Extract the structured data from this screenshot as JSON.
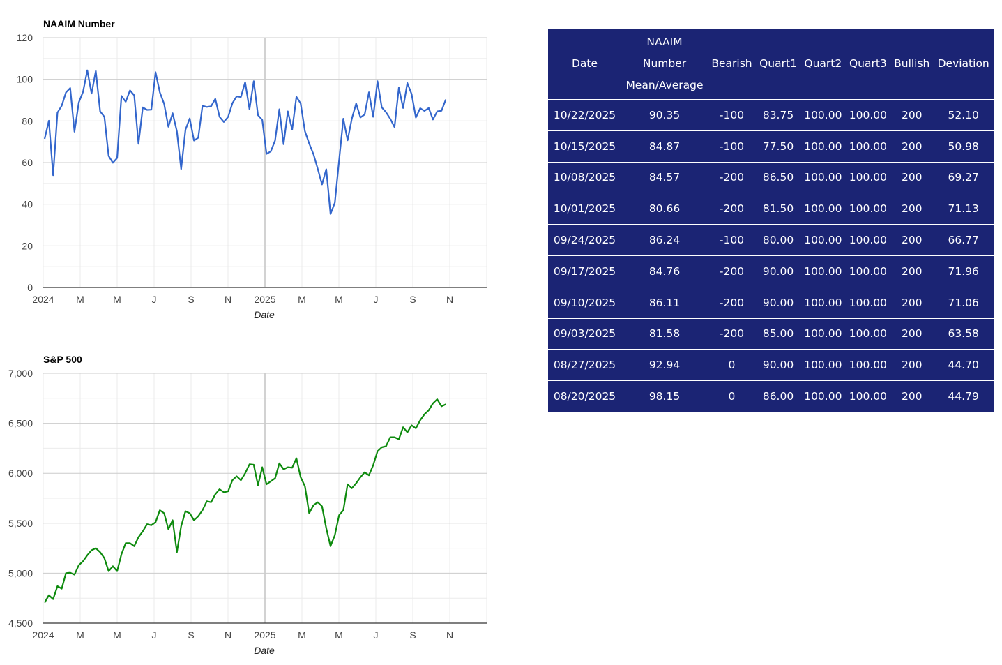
{
  "charts_meta": {
    "colors": {
      "naaim_line": "#3366cc",
      "sp_line": "#0d8a0d",
      "gridline": "#cccccc",
      "minor_gridline": "#ebebeb",
      "table_bg": "#1b2474",
      "table_text": "#ffffff"
    }
  },
  "chart_data": [
    {
      "type": "line",
      "title": "NAAIM Number",
      "xlabel": "Date",
      "ylabel": "",
      "ylim": [
        0,
        120
      ],
      "xlim": [
        "2024-01-01",
        "2025-12-31"
      ],
      "yticks": [
        "0",
        "20",
        "40",
        "60",
        "80",
        "100",
        "120"
      ],
      "xtick_labels": [
        "2024",
        "M",
        "M",
        "J",
        "S",
        "N",
        "2025",
        "M",
        "M",
        "J",
        "S",
        "N"
      ],
      "grid": true,
      "legend": "none",
      "series": [
        {
          "values": [
            71.4,
            80.1,
            53.9,
            84.0,
            87.3,
            93.7,
            95.8,
            74.8,
            88.9,
            94.0,
            104.3,
            93.2,
            104.0,
            84.6,
            82.0,
            63.2,
            59.9,
            62.2,
            92.0,
            89.2,
            94.7,
            92.3,
            69.0,
            86.5,
            85.3,
            85.4,
            103.4,
            93.8,
            88.2,
            77.2,
            83.7,
            75.0,
            56.9,
            75.8,
            81.2,
            70.6,
            71.9,
            87.3,
            86.7,
            87.0,
            90.6,
            82.0,
            79.5,
            82.0,
            88.5,
            91.8,
            91.5,
            98.6,
            85.6,
            99.1,
            82.8,
            80.5,
            64.2,
            65.4,
            70.6,
            85.6,
            68.8,
            84.6,
            75.8,
            91.6,
            88.4,
            75.1,
            69.2,
            64.0,
            57.0,
            49.5,
            56.8,
            35.3,
            40.7,
            61.0,
            81.1,
            70.7,
            81.1,
            88.4,
            81.7,
            83.1,
            93.8,
            82.0,
            99.1,
            86.5,
            84.2,
            81.0,
            77.0,
            96.0,
            86.2,
            98.2,
            92.9,
            81.6,
            86.1,
            84.8,
            86.2,
            80.7,
            84.6,
            84.9,
            90.3
          ]
        }
      ]
    },
    {
      "type": "line",
      "title": "S&P 500",
      "xlabel": "Date",
      "ylabel": "",
      "ylim": [
        4500,
        7000
      ],
      "xlim": [
        "2024-01-01",
        "2025-12-31"
      ],
      "yticks": [
        "4,500",
        "5,000",
        "5,500",
        "6,000",
        "6,500",
        "7,000"
      ],
      "xtick_labels": [
        "2024",
        "M",
        "M",
        "J",
        "S",
        "N",
        "2025",
        "M",
        "M",
        "J",
        "S",
        "N"
      ],
      "grid": true,
      "legend": "none",
      "series": [
        {
          "values": [
            4705,
            4780,
            4740,
            4870,
            4845,
            5000,
            5005,
            4985,
            5080,
            5120,
            5180,
            5230,
            5250,
            5210,
            5150,
            5020,
            5070,
            5020,
            5190,
            5300,
            5300,
            5270,
            5360,
            5420,
            5490,
            5480,
            5510,
            5630,
            5600,
            5440,
            5530,
            5210,
            5470,
            5620,
            5600,
            5530,
            5570,
            5630,
            5720,
            5710,
            5790,
            5840,
            5810,
            5820,
            5930,
            5970,
            5930,
            6000,
            6090,
            6085,
            5880,
            6060,
            5890,
            5920,
            5950,
            6100,
            6040,
            6060,
            6055,
            6150,
            5960,
            5870,
            5600,
            5680,
            5710,
            5670,
            5450,
            5270,
            5380,
            5580,
            5630,
            5890,
            5850,
            5900,
            5960,
            6010,
            5980,
            6080,
            6220,
            6260,
            6270,
            6360,
            6360,
            6340,
            6460,
            6410,
            6480,
            6450,
            6530,
            6590,
            6630,
            6700,
            6740,
            6670,
            6690
          ]
        }
      ]
    }
  ],
  "table": {
    "headers": [
      {
        "lines": [
          "Date"
        ]
      },
      {
        "lines": [
          "NAAIM",
          "Number",
          "Mean/Average"
        ]
      },
      {
        "lines": [
          "Bearish"
        ]
      },
      {
        "lines": [
          "Quart1"
        ]
      },
      {
        "lines": [
          "Quart2"
        ]
      },
      {
        "lines": [
          "Quart3"
        ]
      },
      {
        "lines": [
          "Bullish"
        ]
      },
      {
        "lines": [
          "Deviation"
        ]
      }
    ],
    "rows": [
      [
        "10/22/2025",
        "90.35",
        "-100",
        "83.75",
        "100.00",
        "100.00",
        "200",
        "52.10"
      ],
      [
        "10/15/2025",
        "84.87",
        "-100",
        "77.50",
        "100.00",
        "100.00",
        "200",
        "50.98"
      ],
      [
        "10/08/2025",
        "84.57",
        "-200",
        "86.50",
        "100.00",
        "100.00",
        "200",
        "69.27"
      ],
      [
        "10/01/2025",
        "80.66",
        "-200",
        "81.50",
        "100.00",
        "100.00",
        "200",
        "71.13"
      ],
      [
        "09/24/2025",
        "86.24",
        "-100",
        "80.00",
        "100.00",
        "100.00",
        "200",
        "66.77"
      ],
      [
        "09/17/2025",
        "84.76",
        "-200",
        "90.00",
        "100.00",
        "100.00",
        "200",
        "71.96"
      ],
      [
        "09/10/2025",
        "86.11",
        "-200",
        "90.00",
        "100.00",
        "100.00",
        "200",
        "71.06"
      ],
      [
        "09/03/2025",
        "81.58",
        "-200",
        "85.00",
        "100.00",
        "100.00",
        "200",
        "63.58"
      ],
      [
        "08/27/2025",
        "92.94",
        "0",
        "90.00",
        "100.00",
        "100.00",
        "200",
        "44.70"
      ],
      [
        "08/20/2025",
        "98.15",
        "0",
        "86.00",
        "100.00",
        "100.00",
        "200",
        "44.79"
      ]
    ]
  }
}
